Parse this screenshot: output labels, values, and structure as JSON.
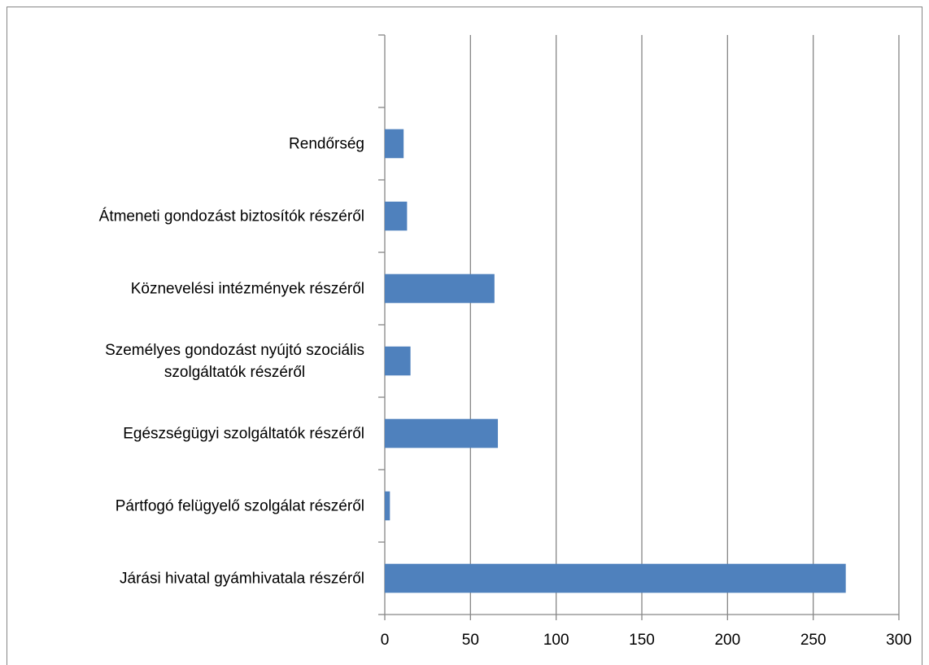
{
  "chart_data": {
    "type": "bar",
    "orientation": "horizontal",
    "categories": [
      null,
      "Rendőrség",
      "Átmeneti gondozást biztosítók részéről",
      "Köznevelési intézmények részéről",
      "Személyes gondozást nyújtó szociális\nszolgáltatók részéről",
      "Egészségügyi szolgáltatók részéről",
      "Pártfogó felügyelő szolgálat részéről",
      "Járási hivatal gyámhivatala részéről"
    ],
    "values": [
      null,
      11,
      13,
      64,
      15,
      66,
      3,
      269
    ],
    "color": "#4f81bd",
    "xlim": [
      0,
      300
    ],
    "xticks": [
      0,
      50,
      100,
      150,
      200,
      250,
      300
    ],
    "grid": true
  }
}
